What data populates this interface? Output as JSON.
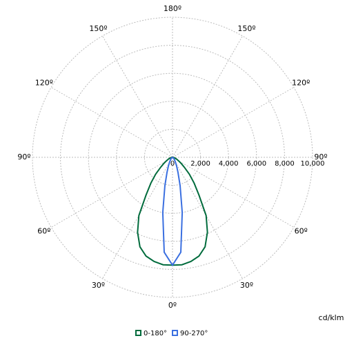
{
  "chart_data": {
    "type": "polar",
    "unit_label": "cd/klm",
    "x": [
      -90,
      -85,
      -80,
      -75,
      -70,
      -65,
      -60,
      -55,
      -50,
      -45,
      -40,
      -35,
      -30,
      -25,
      -20,
      -15,
      -10,
      -5,
      0,
      5,
      10,
      15,
      20,
      25,
      30,
      35,
      40,
      45,
      50,
      55,
      60,
      65,
      70,
      75,
      80,
      85,
      90
    ],
    "series": [
      {
        "name": "0-180°",
        "color": "#006b3c",
        "values": [
          0,
          50,
          100,
          150,
          250,
          350,
          500,
          750,
          1100,
          1700,
          2400,
          3300,
          4800,
          5900,
          6800,
          7300,
          7550,
          7700,
          7700,
          7700,
          7550,
          7300,
          6800,
          5900,
          4800,
          3300,
          2400,
          1700,
          1100,
          750,
          500,
          350,
          250,
          150,
          100,
          50,
          0
        ]
      },
      {
        "name": "90-270°",
        "color": "#3a6fe0",
        "values": [
          0,
          0,
          0,
          0,
          0,
          20,
          50,
          70,
          100,
          150,
          200,
          300,
          450,
          700,
          1150,
          2100,
          4000,
          6800,
          7700,
          6800,
          4000,
          2100,
          1150,
          700,
          450,
          300,
          200,
          150,
          100,
          70,
          50,
          20,
          0,
          0,
          0,
          0,
          0
        ]
      }
    ],
    "rlim": [
      0,
      10000
    ],
    "rticks": [
      0,
      {
        "value": 2000,
        "label": "2,000"
      },
      {
        "value": 4000,
        "label": "4,000"
      },
      {
        "value": 6000,
        "label": "6,000"
      },
      {
        "value": 8000,
        "label": "8,000"
      },
      {
        "value": 10000,
        "label": "10,000"
      }
    ],
    "angle_ticks": [
      {
        "value": 0,
        "label": "0º"
      },
      {
        "value": 30,
        "label": "30º"
      },
      {
        "value": 60,
        "label": "60º"
      },
      {
        "value": 90,
        "label": "90º"
      },
      {
        "value": 120,
        "label": "120º"
      },
      {
        "value": 150,
        "label": "150º"
      },
      {
        "value": 180,
        "label": "180º"
      },
      {
        "value": -150,
        "label": "150º"
      },
      {
        "value": -120,
        "label": "120º"
      },
      {
        "value": -90,
        "label": "90º"
      },
      {
        "value": -60,
        "label": "60º"
      },
      {
        "value": -30,
        "label": "30º"
      }
    ],
    "grid": true
  }
}
